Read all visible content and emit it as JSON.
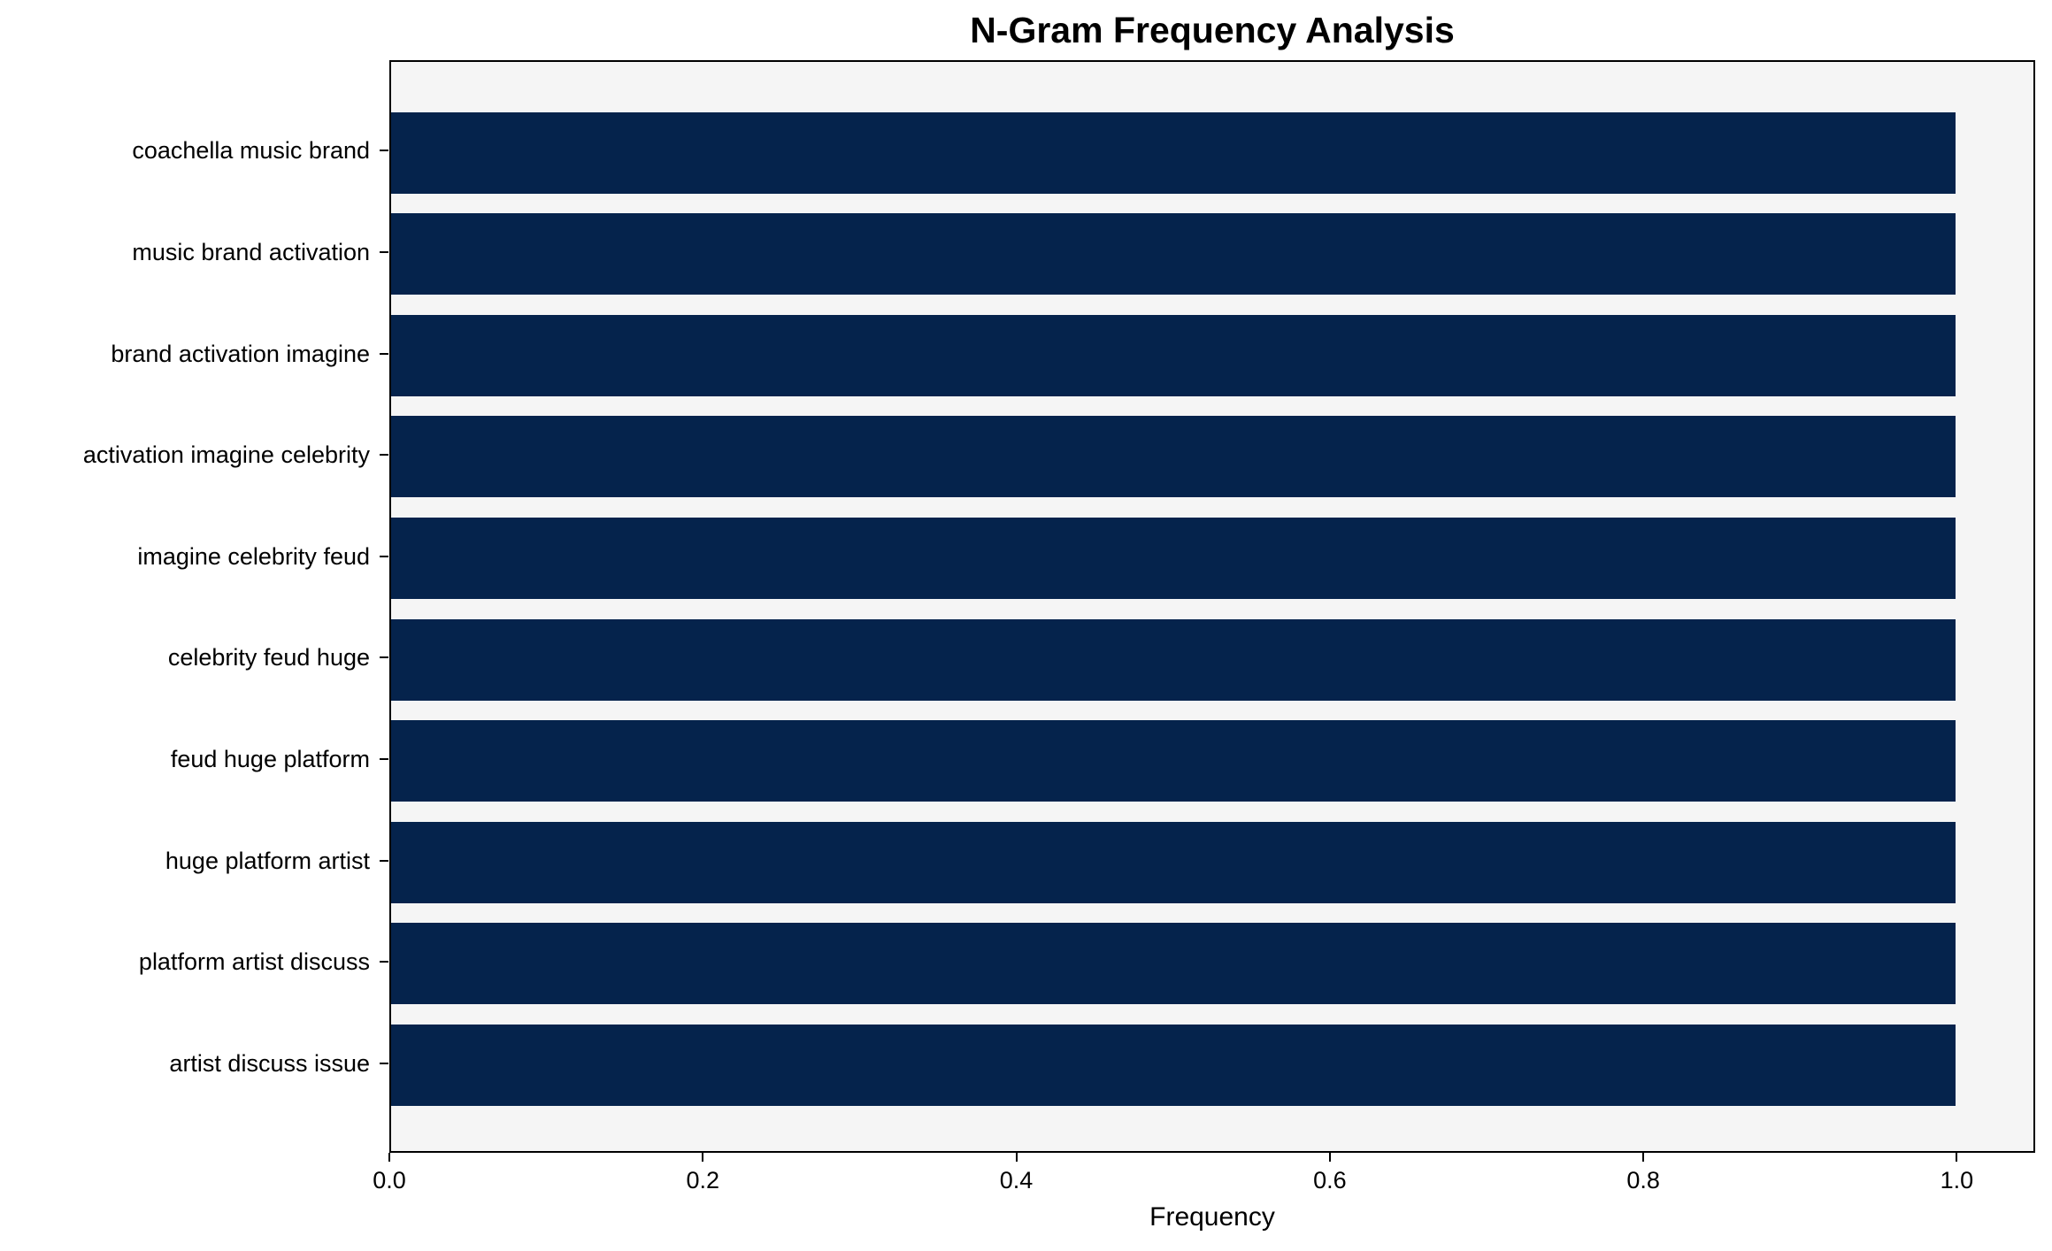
{
  "chart_data": {
    "type": "bar",
    "orientation": "horizontal",
    "title": "N-Gram Frequency Analysis",
    "xlabel": "Frequency",
    "ylabel": "",
    "categories": [
      "coachella music brand",
      "music brand activation",
      "brand activation imagine",
      "activation imagine celebrity",
      "imagine celebrity feud",
      "celebrity feud huge",
      "feud huge platform",
      "huge platform artist",
      "platform artist discuss",
      "artist discuss issue"
    ],
    "values": [
      1.0,
      1.0,
      1.0,
      1.0,
      1.0,
      1.0,
      1.0,
      1.0,
      1.0,
      1.0
    ],
    "xlim": [
      0,
      1.05
    ],
    "x_ticks": [
      0.0,
      0.2,
      0.4,
      0.6,
      0.8,
      1.0
    ],
    "x_tick_labels": [
      "0.0",
      "0.2",
      "0.4",
      "0.6",
      "0.8",
      "1.0"
    ],
    "grid": false,
    "legend": null,
    "colors": {
      "bar": "#05234c",
      "plot_background": "#f5f5f5",
      "figure_background": "#ffffff",
      "spine": "#000000",
      "text": "#000000"
    }
  }
}
